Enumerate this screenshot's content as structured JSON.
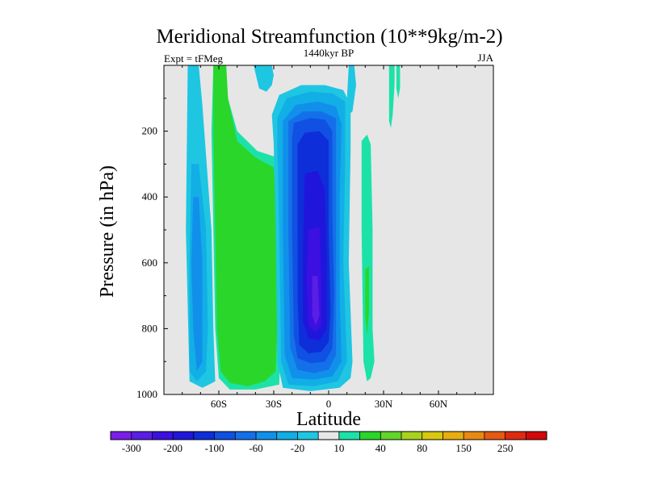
{
  "chart_data": {
    "type": "contour",
    "title": "Meridional Streamfunction (10**9kg/m-2)",
    "left_label": "Expt = tFMeg",
    "center_label": "1440kyr BP",
    "right_label": "JJA",
    "xlabel": "Latitude",
    "ylabel": "Pressure (in hPa)",
    "xlim": [
      -90,
      90
    ],
    "ylim": [
      1000,
      0
    ],
    "x_ticks": [
      {
        "value": -60,
        "label": "60S"
      },
      {
        "value": -30,
        "label": "30S"
      },
      {
        "value": 0,
        "label": "0"
      },
      {
        "value": 30,
        "label": "30N"
      },
      {
        "value": 60,
        "label": "60N"
      }
    ],
    "y_ticks": [
      {
        "value": 200,
        "label": "200"
      },
      {
        "value": 400,
        "label": "400"
      },
      {
        "value": 600,
        "label": "600"
      },
      {
        "value": 800,
        "label": "800"
      },
      {
        "value": 1000,
        "label": "1000"
      }
    ],
    "background_color": "#e6e6e6",
    "levels": [
      -300,
      -250,
      -200,
      -150,
      -100,
      -80,
      -60,
      -40,
      -20,
      -10,
      10,
      20,
      40,
      60,
      80,
      100,
      150,
      200,
      250,
      300
    ],
    "colorbar": {
      "colors": [
        "#7a1ee8",
        "#5a1ee6",
        "#3b10e0",
        "#2016db",
        "#0d2ed8",
        "#1050e2",
        "#1470e8",
        "#1090ea",
        "#12aee6",
        "#1ec6e2",
        "#e6e6e6",
        "#1ce2a8",
        "#2ad62a",
        "#62d42a",
        "#a8d21e",
        "#d8c810",
        "#e8ae10",
        "#e88a12",
        "#e65a12",
        "#e02a10",
        "#d40808"
      ],
      "labels": [
        {
          "after_index": 0,
          "text": "-300"
        },
        {
          "after_index": 2,
          "text": "-200"
        },
        {
          "after_index": 4,
          "text": "-100"
        },
        {
          "after_index": 6,
          "text": "-60"
        },
        {
          "after_index": 8,
          "text": "-20"
        },
        {
          "after_index": 10,
          "text": "10"
        },
        {
          "after_index": 12,
          "text": "40"
        },
        {
          "after_index": 14,
          "text": "80"
        },
        {
          "after_index": 16,
          "text": "150"
        },
        {
          "after_index": 18,
          "text": "250"
        }
      ]
    },
    "regions": [
      {
        "name": "sh-polar-cell",
        "fill": "#1ec6e2",
        "pts": [
          [
            -77,
            0
          ],
          [
            -71,
            0
          ],
          [
            -69,
            120
          ],
          [
            -64,
            500
          ],
          [
            -63,
            800
          ],
          [
            -62,
            960
          ],
          [
            -69,
            980
          ],
          [
            -76,
            960
          ],
          [
            -78,
            500
          ]
        ]
      },
      {
        "name": "sh-polar-cell",
        "fill": "#12aee6",
        "pts": [
          [
            -75,
            300
          ],
          [
            -71,
            300
          ],
          [
            -67,
            500
          ],
          [
            -66,
            800
          ],
          [
            -67,
            930
          ],
          [
            -72,
            960
          ],
          [
            -76,
            930
          ],
          [
            -76,
            600
          ]
        ]
      },
      {
        "name": "sh-polar-cell",
        "fill": "#1090ea",
        "pts": [
          [
            -74,
            400
          ],
          [
            -71,
            400
          ],
          [
            -69,
            600
          ],
          [
            -69,
            900
          ],
          [
            -72,
            930
          ],
          [
            -74,
            800
          ],
          [
            -75,
            600
          ]
        ]
      },
      {
        "name": "sh-upper-cell",
        "fill": "#1ec6e2",
        "pts": [
          [
            -41,
            0
          ],
          [
            -31,
            0
          ],
          [
            -30,
            30
          ],
          [
            -31,
            60
          ],
          [
            -34,
            80
          ],
          [
            -38,
            70
          ]
        ]
      },
      {
        "name": "ferrel-cell",
        "fill": "#1ce2a8",
        "pts": [
          [
            -63,
            0
          ],
          [
            -56,
            0
          ],
          [
            -55,
            100
          ],
          [
            -50,
            200
          ],
          [
            -39,
            260
          ],
          [
            -28,
            280
          ],
          [
            -26,
            400
          ],
          [
            -26,
            800
          ],
          [
            -27,
            970
          ],
          [
            -40,
            985
          ],
          [
            -54,
            985
          ],
          [
            -60,
            950
          ],
          [
            -62,
            800
          ],
          [
            -63,
            500
          ],
          [
            -64,
            200
          ]
        ]
      },
      {
        "name": "ferrel-cell",
        "fill": "#2ad62a",
        "pts": [
          [
            -63,
            0
          ],
          [
            -56,
            0
          ],
          [
            -55,
            100
          ],
          [
            -50,
            230
          ],
          [
            -40,
            280
          ],
          [
            -30,
            310
          ],
          [
            -28,
            500
          ],
          [
            -28,
            800
          ],
          [
            -29,
            930
          ],
          [
            -35,
            960
          ],
          [
            -44,
            975
          ],
          [
            -54,
            965
          ],
          [
            -59,
            930
          ],
          [
            -61,
            800
          ],
          [
            -62,
            500
          ],
          [
            -63,
            200
          ]
        ]
      },
      {
        "name": "hadley-cell",
        "fill": "#1ec6e2",
        "pts": [
          [
            -30,
            240
          ],
          [
            -31,
            150
          ],
          [
            -27,
            90
          ],
          [
            -15,
            60
          ],
          [
            -2,
            60
          ],
          [
            8,
            75
          ],
          [
            12,
            120
          ],
          [
            12,
            250
          ],
          [
            11,
            600
          ],
          [
            13,
            900
          ],
          [
            12,
            950
          ],
          [
            6,
            980
          ],
          [
            -10,
            990
          ],
          [
            -25,
            980
          ],
          [
            -28,
            900
          ],
          [
            -29,
            500
          ]
        ]
      },
      {
        "name": "hadley-cell",
        "fill": "#12aee6",
        "pts": [
          [
            -28,
            240
          ],
          [
            -28,
            160
          ],
          [
            -23,
            100
          ],
          [
            -10,
            80
          ],
          [
            2,
            85
          ],
          [
            9,
            110
          ],
          [
            9,
            300
          ],
          [
            8,
            600
          ],
          [
            10,
            900
          ],
          [
            5,
            960
          ],
          [
            -8,
            975
          ],
          [
            -22,
            970
          ],
          [
            -26,
            900
          ],
          [
            -27,
            500
          ]
        ]
      },
      {
        "name": "hadley-cell",
        "fill": "#1090ea",
        "pts": [
          [
            -25,
            230
          ],
          [
            -25,
            170
          ],
          [
            -18,
            120
          ],
          [
            -6,
            110
          ],
          [
            4,
            125
          ],
          [
            7,
            180
          ],
          [
            6,
            400
          ],
          [
            6,
            700
          ],
          [
            7,
            900
          ],
          [
            2,
            945
          ],
          [
            -8,
            955
          ],
          [
            -20,
            950
          ],
          [
            -24,
            880
          ],
          [
            -25,
            500
          ]
        ]
      },
      {
        "name": "hadley-cell",
        "fill": "#1470e8",
        "pts": [
          [
            -22,
            220
          ],
          [
            -22,
            170
          ],
          [
            -14,
            140
          ],
          [
            -4,
            140
          ],
          [
            4,
            160
          ],
          [
            4,
            400
          ],
          [
            4,
            700
          ],
          [
            4,
            880
          ],
          [
            0,
            925
          ],
          [
            -8,
            935
          ],
          [
            -17,
            925
          ],
          [
            -21,
            860
          ],
          [
            -22,
            500
          ]
        ]
      },
      {
        "name": "hadley-cell",
        "fill": "#1050e2",
        "pts": [
          [
            -20,
            220
          ],
          [
            -19,
            175
          ],
          [
            -10,
            160
          ],
          [
            -2,
            165
          ],
          [
            2,
            200
          ],
          [
            2,
            450
          ],
          [
            3,
            700
          ],
          [
            2,
            860
          ],
          [
            -2,
            900
          ],
          [
            -10,
            905
          ],
          [
            -17,
            890
          ],
          [
            -19,
            820
          ],
          [
            -20,
            500
          ]
        ]
      },
      {
        "name": "hadley-cell",
        "fill": "#0d2ed8",
        "pts": [
          [
            -17,
            240
          ],
          [
            -13,
            205
          ],
          [
            -5,
            200
          ],
          [
            0,
            230
          ],
          [
            0,
            500
          ],
          [
            1,
            750
          ],
          [
            0,
            840
          ],
          [
            -4,
            870
          ],
          [
            -11,
            875
          ],
          [
            -16,
            850
          ],
          [
            -17,
            700
          ],
          [
            -17,
            450
          ]
        ]
      },
      {
        "name": "hadley-cell",
        "fill": "#2016db",
        "pts": [
          [
            -13,
            330
          ],
          [
            -6,
            320
          ],
          [
            -2,
            380
          ],
          [
            -1,
            600
          ],
          [
            -1,
            800
          ],
          [
            -5,
            835
          ],
          [
            -11,
            830
          ],
          [
            -14,
            780
          ],
          [
            -14,
            550
          ]
        ]
      },
      {
        "name": "hadley-cell",
        "fill": "#3b10e0",
        "pts": [
          [
            -11,
            500
          ],
          [
            -5,
            490
          ],
          [
            -4,
            650
          ],
          [
            -4,
            790
          ],
          [
            -7,
            810
          ],
          [
            -11,
            790
          ],
          [
            -12,
            650
          ]
        ]
      },
      {
        "name": "hadley-cell",
        "fill": "#5a1ee6",
        "pts": [
          [
            -9,
            640
          ],
          [
            -6,
            640
          ],
          [
            -5,
            760
          ],
          [
            -7,
            790
          ],
          [
            -9,
            760
          ]
        ]
      },
      {
        "name": "nh-upper-cell",
        "fill": "#1ec6e2",
        "pts": [
          [
            11,
            0
          ],
          [
            14,
            0
          ],
          [
            15,
            60
          ],
          [
            13,
            140
          ],
          [
            11,
            150
          ],
          [
            10,
            100
          ]
        ]
      },
      {
        "name": "nh-ferrel-cell",
        "fill": "#1ce2a8",
        "pts": [
          [
            18,
            230
          ],
          [
            21,
            210
          ],
          [
            23,
            240
          ],
          [
            24,
            500
          ],
          [
            24,
            800
          ],
          [
            25,
            900
          ],
          [
            23,
            950
          ],
          [
            21,
            960
          ],
          [
            19,
            900
          ],
          [
            18,
            500
          ]
        ]
      },
      {
        "name": "nh-ferrel-cell",
        "fill": "#2ad62a",
        "pts": [
          [
            20,
            620
          ],
          [
            22,
            610
          ],
          [
            22,
            750
          ],
          [
            21,
            820
          ],
          [
            20,
            760
          ]
        ]
      },
      {
        "name": "nh-upper-cell",
        "fill": "#1ce2a8",
        "pts": [
          [
            33,
            0
          ],
          [
            36,
            0
          ],
          [
            36,
            60
          ],
          [
            35,
            150
          ],
          [
            34,
            190
          ],
          [
            33,
            170
          ],
          [
            33,
            80
          ]
        ]
      },
      {
        "name": "nh-upper-cell",
        "fill": "#1ce2a8",
        "pts": [
          [
            37,
            0
          ],
          [
            39,
            0
          ],
          [
            39,
            70
          ],
          [
            38,
            100
          ],
          [
            37,
            70
          ]
        ]
      }
    ]
  }
}
